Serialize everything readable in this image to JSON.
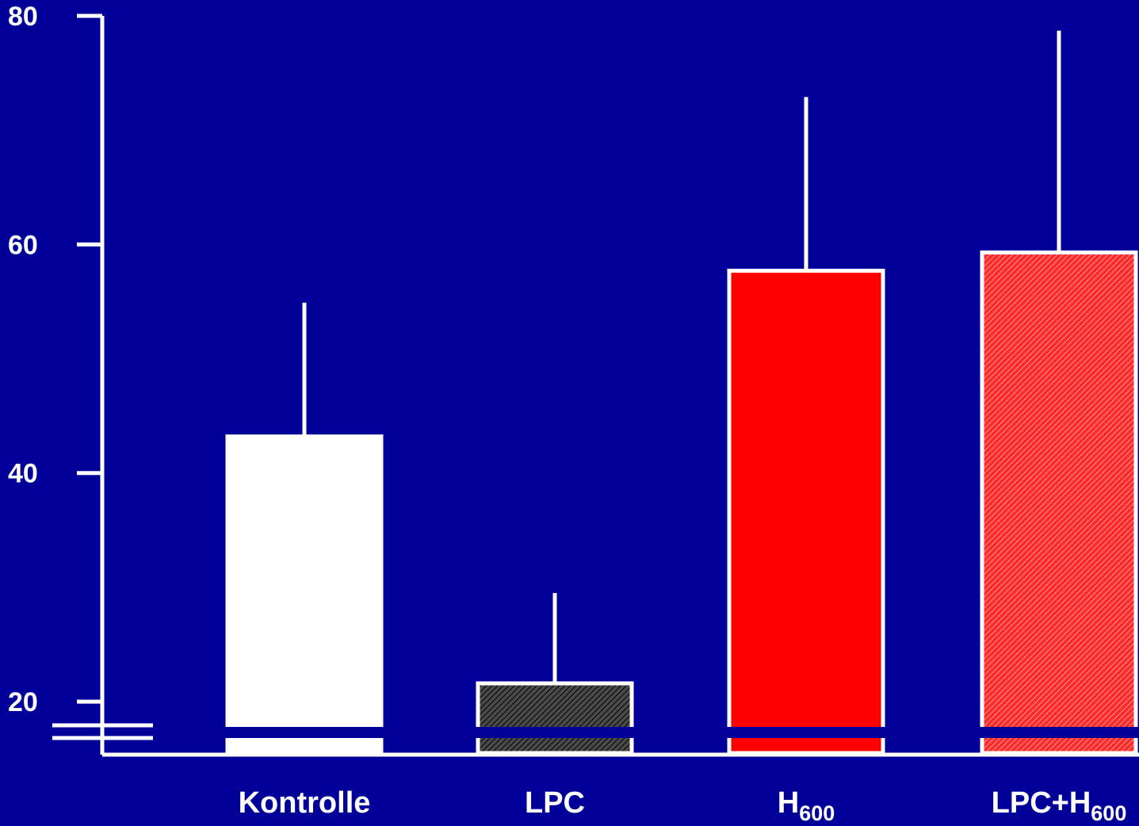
{
  "chart_data": {
    "type": "bar",
    "title": "",
    "xlabel": "",
    "ylabel": "",
    "ylim": [
      15.5,
      80
    ],
    "y_ticks": [
      {
        "value": 80,
        "label": "80"
      },
      {
        "value": 60,
        "label": "60"
      },
      {
        "value": 40,
        "label": "40"
      },
      {
        "value": 20,
        "label": "20"
      }
    ],
    "axis_break": true,
    "grid": false,
    "legend": "none",
    "categories": [
      {
        "main": "Kontrolle",
        "sub": ""
      },
      {
        "main": "LPC",
        "sub": ""
      },
      {
        "main": "H",
        "sub": "600"
      },
      {
        "main": "LPC+H",
        "sub": "600"
      }
    ],
    "values": [
      43.2,
      21.6,
      57.7,
      59.3
    ],
    "error_upper": [
      54.9,
      29.5,
      72.9,
      78.7
    ],
    "styles": [
      {
        "fill": "#ffffff",
        "pattern": "none"
      },
      {
        "fill": "#555555",
        "pattern": "hatch-dark"
      },
      {
        "fill": "#ff0000",
        "pattern": "none"
      },
      {
        "fill": "#ff3333",
        "pattern": "hatch-red"
      }
    ],
    "colors": {
      "background": "#000099",
      "axis": "#ffffff",
      "bar_outline": "#ffffff"
    }
  }
}
